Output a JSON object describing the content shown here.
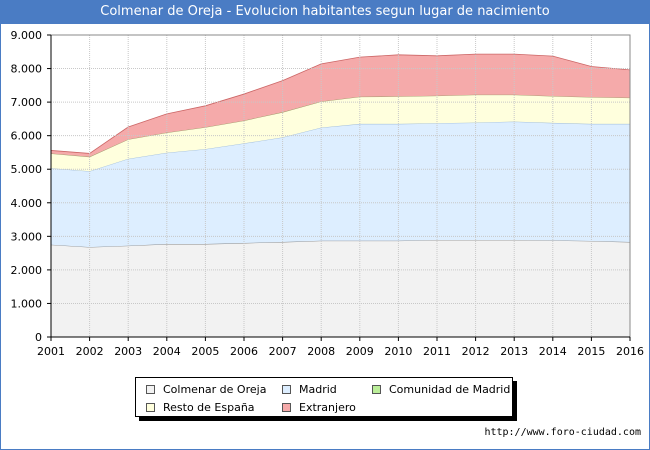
{
  "title": "Colmenar de Oreja - Evolucion habitantes segun lugar de nacimiento",
  "url": "http://www.foro-ciudad.com",
  "colors": {
    "title_bg": "#4a7cc4",
    "colmenar": "#f2f2f2",
    "madrid": "#ddeeff",
    "comunidad": "#bbee99",
    "resto": "#ffffdd",
    "extranjero": "#f5aaaa"
  },
  "chart_data": {
    "type": "area",
    "stacked": true,
    "x": [
      2001,
      2002,
      2003,
      2004,
      2005,
      2006,
      2007,
      2008,
      2009,
      2010,
      2011,
      2012,
      2013,
      2014,
      2015,
      2016
    ],
    "ylim": [
      0,
      9000
    ],
    "yticks": [
      0,
      1000,
      2000,
      3000,
      4000,
      5000,
      6000,
      7000,
      8000,
      9000
    ],
    "ytick_labels": [
      "0",
      "1.000",
      "2.000",
      "3.000",
      "4.000",
      "5.000",
      "6.000",
      "7.000",
      "8.000",
      "9.000"
    ],
    "xtick_labels": [
      "2001",
      "2002",
      "2003",
      "2004",
      "2005",
      "2006",
      "2007",
      "2008",
      "2009",
      "2010",
      "2011",
      "2012",
      "2013",
      "2014",
      "2015",
      "2016"
    ],
    "grid": true,
    "legend_position": "bottom",
    "series": [
      {
        "name": "Colmenar de Oreja",
        "color_key": "colmenar",
        "values": [
          2750,
          2680,
          2720,
          2770,
          2770,
          2800,
          2830,
          2870,
          2870,
          2870,
          2890,
          2890,
          2890,
          2880,
          2860,
          2830
        ]
      },
      {
        "name": "Madrid",
        "color_key": "madrid",
        "values": [
          2280,
          2260,
          2590,
          2720,
          2830,
          2970,
          3120,
          3370,
          3480,
          3480,
          3480,
          3500,
          3530,
          3500,
          3490,
          3520
        ]
      },
      {
        "name": "Comunidad de Madrid",
        "color_key": "comunidad",
        "values": [
          0,
          0,
          0,
          0,
          0,
          0,
          0,
          0,
          0,
          0,
          0,
          0,
          0,
          0,
          0,
          0
        ]
      },
      {
        "name": "Resto de España",
        "color_key": "resto",
        "values": [
          440,
          430,
          580,
          600,
          650,
          680,
          750,
          780,
          810,
          820,
          820,
          830,
          800,
          800,
          800,
          780
        ]
      },
      {
        "name": "Extranjero",
        "color_key": "extranjero",
        "values": [
          90,
          100,
          370,
          560,
          640,
          790,
          940,
          1120,
          1180,
          1240,
          1190,
          1210,
          1210,
          1190,
          910,
          830
        ]
      }
    ]
  },
  "legend": {
    "items": [
      {
        "label": "Colmenar de Oreja",
        "color_key": "colmenar"
      },
      {
        "label": "Madrid",
        "color_key": "madrid"
      },
      {
        "label": "Comunidad de Madrid",
        "color_key": "comunidad"
      },
      {
        "label": "Resto de España",
        "color_key": "resto"
      },
      {
        "label": "Extranjero",
        "color_key": "extranjero"
      }
    ]
  }
}
